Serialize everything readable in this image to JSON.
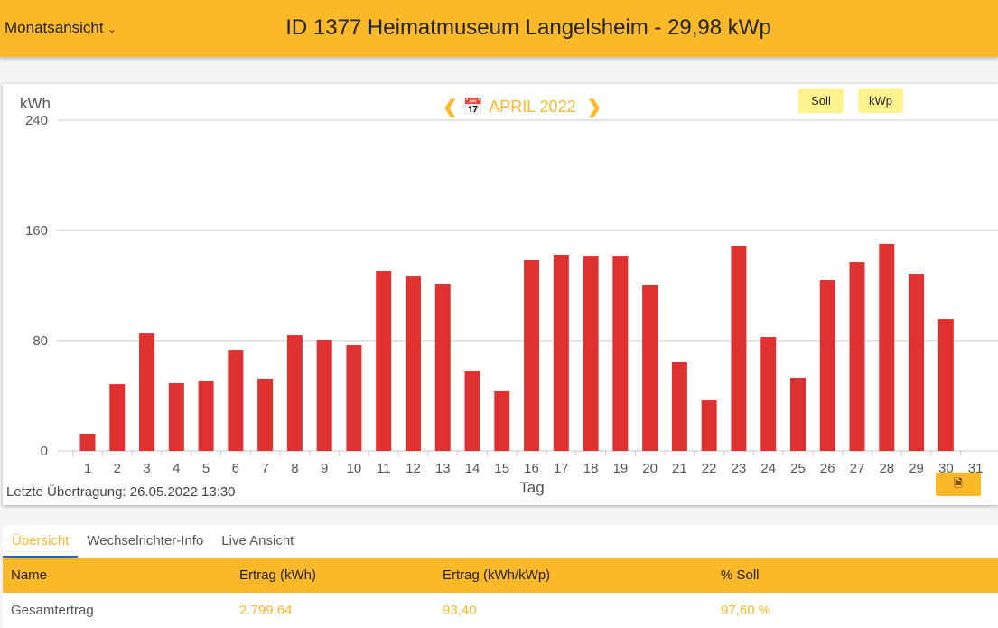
{
  "header": {
    "view_select": "Monatsansicht",
    "title": "ID 1377 Heimatmuseum Langelsheim - 29,98 kWp"
  },
  "chart_nav": {
    "month": "APRIL 2022",
    "prev_icon": "chevron-left-icon",
    "next_icon": "chevron-right-icon",
    "calendar_icon": "calendar-icon"
  },
  "buttons": {
    "soll": "Soll",
    "kwp": "kWp",
    "pdf_icon": "pdf-file-icon"
  },
  "last_transfer": "Letzte Übertragung: 26.05.2022 13:30",
  "colors": {
    "accent": "#fbb829",
    "bar": "#e03131",
    "chip": "#fff38e"
  },
  "chart_data": {
    "type": "bar",
    "title": "",
    "xlabel": "Tag",
    "ylabel": "kWh",
    "ylim": [
      0,
      240
    ],
    "yticks": [
      0,
      80,
      160,
      240
    ],
    "grid": true,
    "categories": [
      "1",
      "2",
      "3",
      "4",
      "5",
      "6",
      "7",
      "8",
      "9",
      "10",
      "11",
      "12",
      "13",
      "14",
      "15",
      "16",
      "17",
      "18",
      "19",
      "20",
      "21",
      "22",
      "23",
      "24",
      "25",
      "26",
      "27",
      "28",
      "29",
      "30",
      "31"
    ],
    "values": [
      12.5,
      48.5,
      85.2,
      49.2,
      50.5,
      73.4,
      52.5,
      83.9,
      80.7,
      76.7,
      130.5,
      127.2,
      121.3,
      57.7,
      43.3,
      138.4,
      142.3,
      141.6,
      141.6,
      120.7,
      64.3,
      36.7,
      148.9,
      82.6,
      53.1,
      123.9,
      137.0,
      150.2,
      128.5,
      95.7,
      null
    ]
  },
  "tabs": [
    "Übersicht",
    "Wechselrichter-Info",
    "Live Ansicht"
  ],
  "table": {
    "headers": [
      "Name",
      "Ertrag (kWh)",
      "Ertrag (kWh/kWp)",
      "% Soll"
    ],
    "rows": [
      [
        "Gesamtertrag",
        "2.799,64",
        "93,40",
        "97,60 %"
      ]
    ]
  }
}
